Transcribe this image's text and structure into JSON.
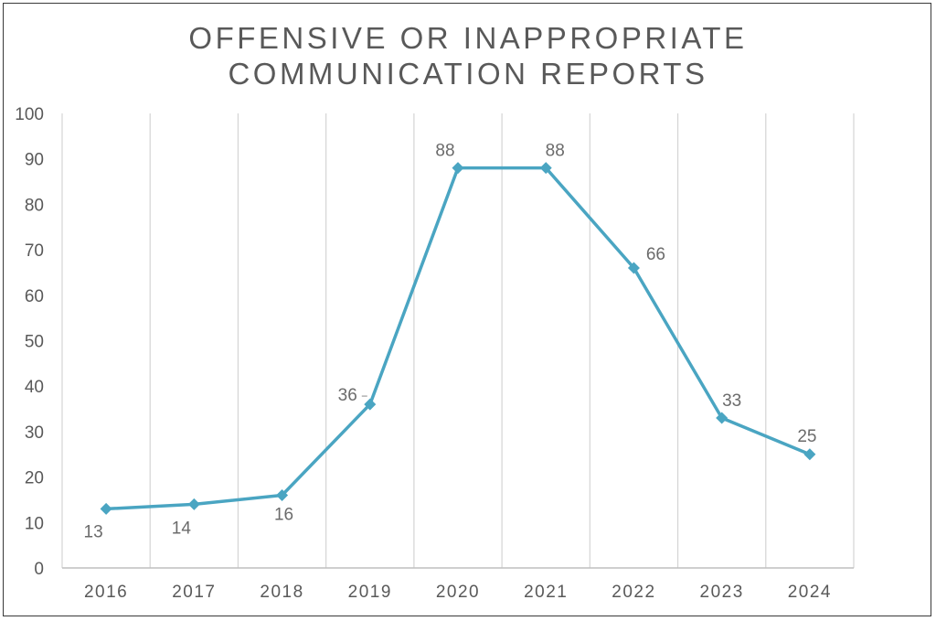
{
  "chart_data": {
    "type": "line",
    "title_lines": [
      "OFFENSIVE OR INAPPROPRIATE",
      "COMMUNICATION REPORTS"
    ],
    "categories": [
      "2016",
      "2017",
      "2018",
      "2019",
      "2020",
      "2021",
      "2022",
      "2023",
      "2024"
    ],
    "series": [
      {
        "name": "Reports",
        "values": [
          13,
          14,
          16,
          36,
          88,
          88,
          66,
          33,
          25
        ],
        "color": "#4aa5c2",
        "marker": "diamond"
      }
    ],
    "data_labels": [
      "13",
      "14",
      "16",
      "36",
      "88",
      "88",
      "66",
      "33",
      "25"
    ],
    "y_ticks": [
      "0",
      "10",
      "20",
      "30",
      "40",
      "50",
      "60",
      "70",
      "80",
      "90",
      "100"
    ],
    "ylim": [
      0,
      100
    ],
    "xlabel": "",
    "ylabel": "",
    "grid": "vertical",
    "legend": "none"
  },
  "colors": {
    "line": "#4aa5c2",
    "grid": "#d4d4d4",
    "axis": "#bfbfbf",
    "text": "#595959",
    "frame": "#3a3a3a"
  }
}
